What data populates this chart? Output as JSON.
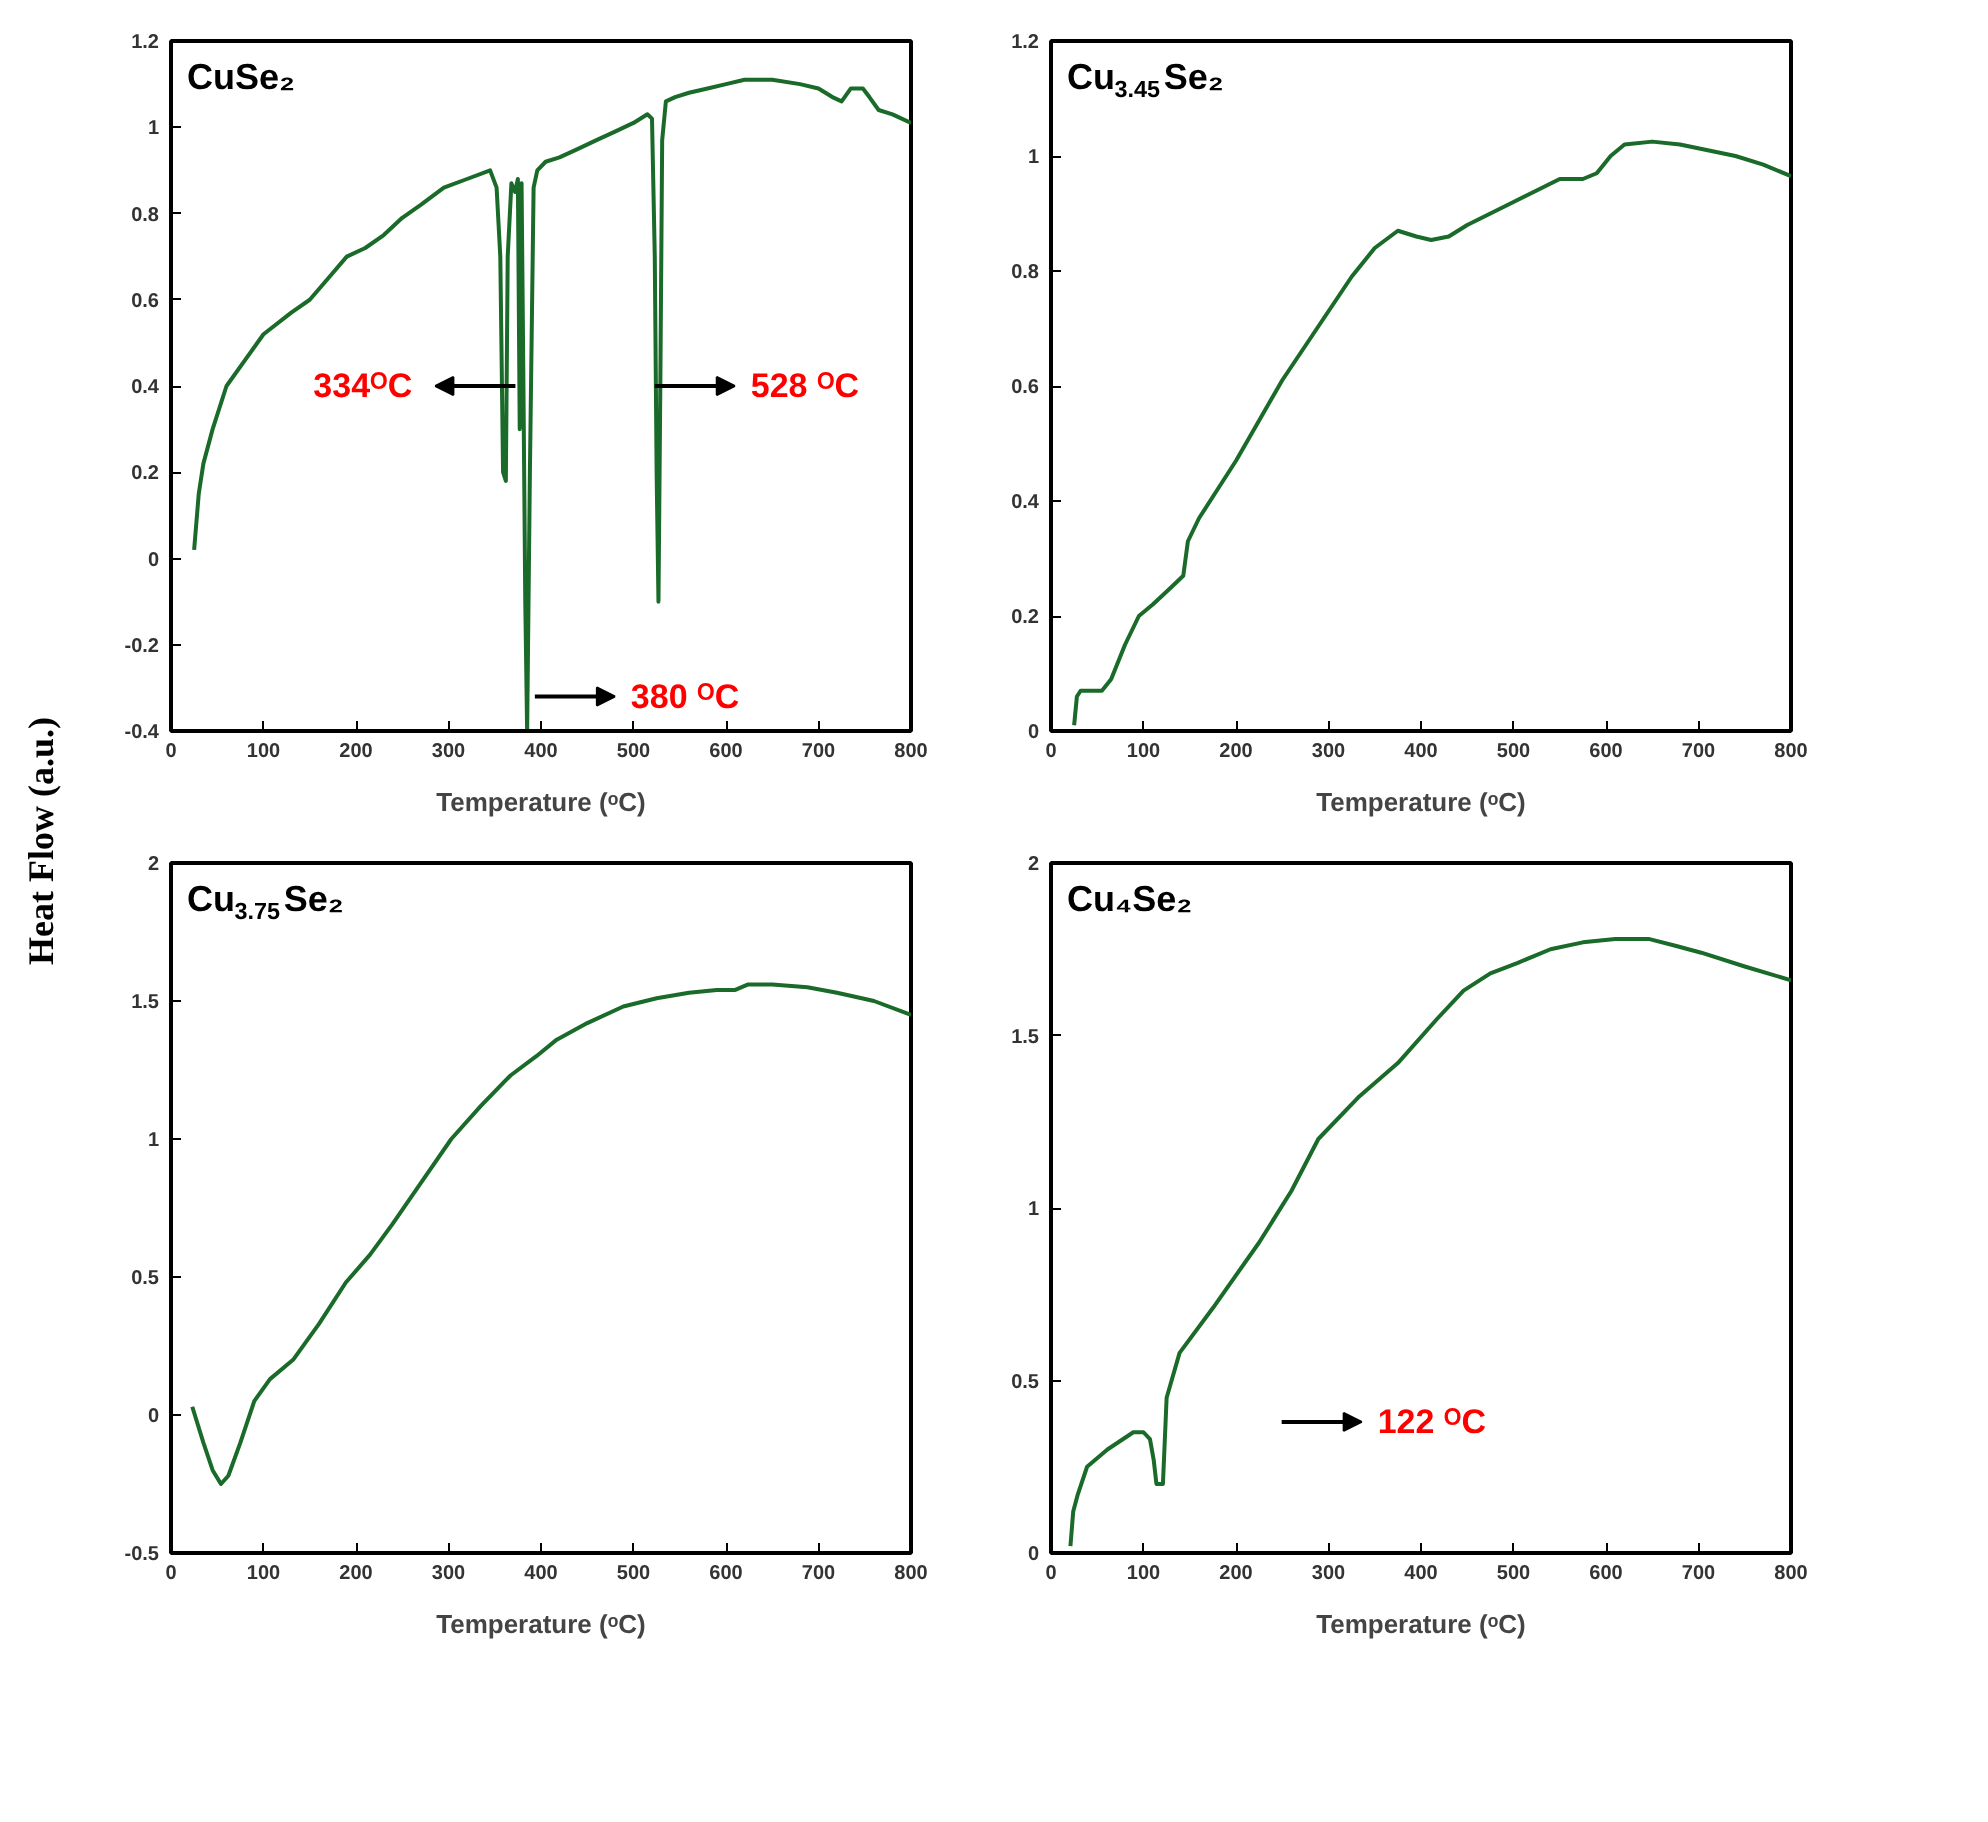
{
  "chart_data": [
    {
      "type": "line",
      "title": "CuSe₂",
      "ylabel": "Heat Flow (a.u.)",
      "xlabel": "Temperature (ᵒC)",
      "xlim": [
        0,
        800
      ],
      "ylim": [
        -0.4,
        1.2
      ],
      "xticks": [
        0,
        100,
        200,
        300,
        400,
        500,
        600,
        700,
        800
      ],
      "yticks": [
        -0.4,
        -0.2,
        0,
        0.2,
        0.4,
        0.6,
        0.8,
        1,
        1.2
      ],
      "grid": false,
      "series": [
        {
          "color": "#1a6a29",
          "x": [
            25,
            30,
            35,
            45,
            60,
            80,
            100,
            130,
            150,
            170,
            190,
            210,
            230,
            250,
            270,
            295,
            320,
            345,
            352,
            356,
            359,
            362,
            364,
            368,
            372,
            375,
            377,
            379,
            381,
            383,
            385,
            388,
            392,
            396,
            405,
            420,
            440,
            460,
            480,
            500,
            515,
            520,
            523,
            525,
            527,
            529,
            531,
            535,
            545,
            560,
            580,
            600,
            620,
            650,
            680,
            700,
            715,
            725,
            735,
            748,
            755,
            765,
            780,
            800
          ],
          "values": [
            0.02,
            0.15,
            0.22,
            0.3,
            0.4,
            0.46,
            0.52,
            0.57,
            0.6,
            0.65,
            0.7,
            0.72,
            0.75,
            0.79,
            0.82,
            0.86,
            0.88,
            0.9,
            0.86,
            0.7,
            0.2,
            0.18,
            0.7,
            0.87,
            0.85,
            0.88,
            0.3,
            0.87,
            0.4,
            -0.1,
            -0.4,
            0.2,
            0.86,
            0.9,
            0.92,
            0.93,
            0.95,
            0.97,
            0.99,
            1.01,
            1.03,
            1.02,
            0.7,
            0.2,
            -0.1,
            0.4,
            0.97,
            1.06,
            1.07,
            1.08,
            1.09,
            1.1,
            1.11,
            1.11,
            1.1,
            1.09,
            1.07,
            1.06,
            1.09,
            1.09,
            1.07,
            1.04,
            1.03,
            1.01
          ]
        }
      ],
      "annotations": [
        "334ᴼC",
        "528 ᴼC",
        "380 ᴼC"
      ]
    },
    {
      "type": "line",
      "title": "Cu$_{3.45}$Se₂",
      "xlabel": "Temperature (ᵒC)",
      "xlim": [
        0,
        800
      ],
      "ylim": [
        0,
        1.2
      ],
      "xticks": [
        0,
        100,
        200,
        300,
        400,
        500,
        600,
        700,
        800
      ],
      "yticks": [
        0,
        0.2,
        0.4,
        0.6,
        0.8,
        1,
        1.2
      ],
      "grid": false,
      "series": [
        {
          "color": "#1a6a29",
          "x": [
            25,
            28,
            32,
            55,
            65,
            80,
            95,
            110,
            130,
            143,
            148,
            160,
            180,
            200,
            225,
            250,
            275,
            300,
            325,
            350,
            375,
            395,
            411,
            430,
            450,
            475,
            500,
            525,
            550,
            575,
            590,
            605,
            620,
            650,
            680,
            710,
            740,
            770,
            800
          ],
          "values": [
            0.01,
            0.06,
            0.07,
            0.07,
            0.09,
            0.15,
            0.2,
            0.22,
            0.25,
            0.27,
            0.33,
            0.37,
            0.42,
            0.47,
            0.54,
            0.61,
            0.67,
            0.73,
            0.79,
            0.84,
            0.87,
            0.86,
            0.854,
            0.86,
            0.88,
            0.9,
            0.92,
            0.94,
            0.96,
            0.96,
            0.97,
            1.0,
            1.02,
            1.025,
            1.02,
            1.01,
            1.0,
            0.985,
            0.965
          ]
        }
      ]
    },
    {
      "type": "line",
      "title": "Cu$_{3.75}$Se₂",
      "xlabel": "Temperature (ᵒC)",
      "xlim": [
        0,
        800
      ],
      "ylim": [
        -0.5,
        2
      ],
      "xticks": [
        0,
        100,
        200,
        300,
        400,
        500,
        600,
        700,
        800
      ],
      "yticks": [
        -0.5,
        0,
        0.5,
        1,
        1.5,
        2
      ],
      "grid": false,
      "series": [
        {
          "color": "#1a6a29",
          "x": [
            23,
            35,
            45,
            54,
            62,
            75,
            90,
            107,
            132,
            160,
            189,
            215,
            239,
            270,
            303,
            335,
            367,
            395,
            417,
            450,
            489,
            525,
            560,
            590,
            610,
            624,
            650,
            688,
            720,
            760,
            800
          ],
          "values": [
            0.03,
            -0.1,
            -0.2,
            -0.25,
            -0.22,
            -0.1,
            0.05,
            0.13,
            0.2,
            0.33,
            0.48,
            0.58,
            0.69,
            0.84,
            1.0,
            1.12,
            1.23,
            1.3,
            1.36,
            1.42,
            1.48,
            1.51,
            1.53,
            1.54,
            1.54,
            1.56,
            1.56,
            1.55,
            1.53,
            1.5,
            1.45
          ]
        }
      ]
    },
    {
      "type": "line",
      "title": "Cu₄Se₂",
      "xlabel": "Temperature (ᵒC)",
      "xlim": [
        0,
        800
      ],
      "ylim": [
        0,
        2
      ],
      "xticks": [
        0,
        100,
        200,
        300,
        400,
        500,
        600,
        700,
        800
      ],
      "yticks": [
        0,
        0.5,
        1,
        1.5,
        2
      ],
      "grid": false,
      "series": [
        {
          "color": "#1a6a29",
          "x": [
            21,
            24,
            29,
            39,
            61,
            89,
            100,
            107,
            111,
            114,
            121,
            125,
            139,
            175,
            225,
            260,
            289,
            332,
            375,
            418,
            446,
            475,
            504,
            540,
            575,
            610,
            646,
            675,
            703,
            750,
            800
          ],
          "values": [
            0.02,
            0.12,
            0.17,
            0.25,
            0.3,
            0.35,
            0.35,
            0.33,
            0.27,
            0.2,
            0.2,
            0.45,
            0.58,
            0.71,
            0.9,
            1.05,
            1.2,
            1.32,
            1.42,
            1.55,
            1.63,
            1.68,
            1.71,
            1.75,
            1.77,
            1.78,
            1.78,
            1.76,
            1.74,
            1.7,
            1.66
          ]
        }
      ],
      "annotations": [
        "122 ᴼC"
      ]
    }
  ]
}
